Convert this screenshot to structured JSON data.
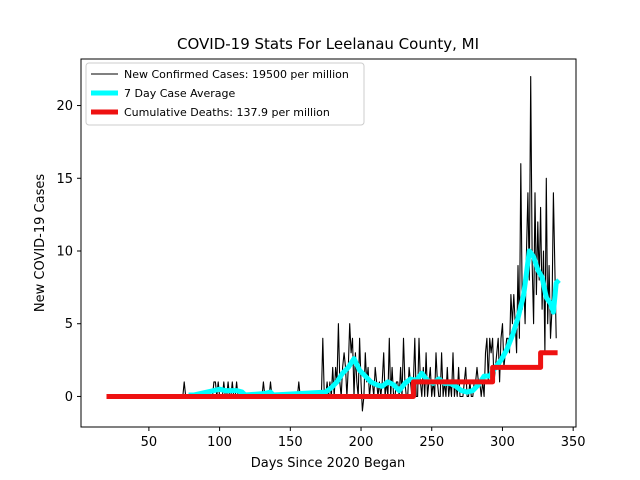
{
  "chart_data": {
    "type": "line",
    "title": "COVID-19 Stats For Leelanau County, MI",
    "xlabel": "Days Since 2020 Began",
    "ylabel": "New COVID-19 Cases",
    "xlim": [
      2,
      352
    ],
    "ylim": [
      -2.1,
      23.2
    ],
    "xticks": [
      50,
      100,
      150,
      200,
      250,
      300,
      350
    ],
    "yticks": [
      0,
      5,
      10,
      15,
      20
    ],
    "grid": false,
    "legend_position": "top-left",
    "series": [
      {
        "name": "New Confirmed Cases: 19500 per million",
        "color": "#000000",
        "points": [
          [
            20,
            0
          ],
          [
            74,
            0
          ],
          [
            75,
            1
          ],
          [
            76,
            0
          ],
          [
            95,
            0
          ],
          [
            96,
            1
          ],
          [
            97,
            1
          ],
          [
            98,
            0
          ],
          [
            99,
            1
          ],
          [
            100,
            0
          ],
          [
            101,
            0
          ],
          [
            102,
            0
          ],
          [
            103,
            1
          ],
          [
            104,
            0
          ],
          [
            105,
            0
          ],
          [
            106,
            1
          ],
          [
            107,
            0
          ],
          [
            108,
            0
          ],
          [
            109,
            1
          ],
          [
            110,
            0
          ],
          [
            111,
            0
          ],
          [
            112,
            1
          ],
          [
            113,
            0
          ],
          [
            114,
            0
          ],
          [
            130,
            0
          ],
          [
            131,
            1
          ],
          [
            132,
            0
          ],
          [
            135,
            0
          ],
          [
            136,
            1
          ],
          [
            137,
            0
          ],
          [
            155,
            0
          ],
          [
            156,
            1
          ],
          [
            157,
            0
          ],
          [
            165,
            0
          ],
          [
            166,
            0
          ],
          [
            172,
            0
          ],
          [
            173,
            4
          ],
          [
            174,
            0
          ],
          [
            175,
            0
          ],
          [
            176,
            1
          ],
          [
            177,
            0
          ],
          [
            178,
            1
          ],
          [
            179,
            0
          ],
          [
            180,
            2
          ],
          [
            181,
            0
          ],
          [
            182,
            2
          ],
          [
            183,
            1
          ],
          [
            184,
            5
          ],
          [
            185,
            1
          ],
          [
            186,
            0
          ],
          [
            187,
            2
          ],
          [
            188,
            3
          ],
          [
            189,
            2
          ],
          [
            190,
            0
          ],
          [
            191,
            2
          ],
          [
            192,
            5
          ],
          [
            193,
            3
          ],
          [
            194,
            4
          ],
          [
            195,
            0
          ],
          [
            196,
            3
          ],
          [
            197,
            1
          ],
          [
            198,
            0
          ],
          [
            199,
            4
          ],
          [
            200,
            1
          ],
          [
            201,
            -1
          ],
          [
            202,
            0
          ],
          [
            203,
            3
          ],
          [
            204,
            1
          ],
          [
            205,
            2
          ],
          [
            206,
            0
          ],
          [
            207,
            1
          ],
          [
            208,
            1
          ],
          [
            209,
            0
          ],
          [
            210,
            2
          ],
          [
            211,
            1
          ],
          [
            212,
            0
          ],
          [
            213,
            1
          ],
          [
            214,
            0
          ],
          [
            215,
            1
          ],
          [
            216,
            3
          ],
          [
            217,
            0
          ],
          [
            218,
            1
          ],
          [
            219,
            0
          ],
          [
            220,
            4
          ],
          [
            221,
            0
          ],
          [
            222,
            2
          ],
          [
            223,
            0
          ],
          [
            224,
            0
          ],
          [
            225,
            1
          ],
          [
            226,
            1
          ],
          [
            227,
            0
          ],
          [
            228,
            2
          ],
          [
            229,
            0
          ],
          [
            230,
            4
          ],
          [
            231,
            1
          ],
          [
            232,
            0
          ],
          [
            233,
            0
          ],
          [
            234,
            2
          ],
          [
            235,
            1
          ],
          [
            236,
            0
          ],
          [
            237,
            1
          ],
          [
            238,
            4
          ],
          [
            239,
            0
          ],
          [
            240,
            0
          ],
          [
            241,
            4
          ],
          [
            242,
            1
          ],
          [
            243,
            0
          ],
          [
            244,
            2
          ],
          [
            245,
            0
          ],
          [
            246,
            3
          ],
          [
            247,
            0
          ],
          [
            248,
            1
          ],
          [
            249,
            2
          ],
          [
            250,
            0
          ],
          [
            251,
            1
          ],
          [
            252,
            0
          ],
          [
            253,
            3
          ],
          [
            254,
            1
          ],
          [
            255,
            0
          ],
          [
            256,
            0
          ],
          [
            257,
            3
          ],
          [
            258,
            0
          ],
          [
            259,
            1
          ],
          [
            260,
            0
          ],
          [
            261,
            2
          ],
          [
            262,
            0
          ],
          [
            263,
            1
          ],
          [
            264,
            0
          ],
          [
            265,
            3
          ],
          [
            266,
            0
          ],
          [
            267,
            1
          ],
          [
            268,
            0
          ],
          [
            269,
            2
          ],
          [
            270,
            0
          ],
          [
            271,
            0
          ],
          [
            272,
            0
          ],
          [
            273,
            1
          ],
          [
            274,
            2
          ],
          [
            275,
            0
          ],
          [
            276,
            0
          ],
          [
            277,
            1
          ],
          [
            278,
            0
          ],
          [
            279,
            0
          ],
          [
            280,
            1
          ],
          [
            281,
            1
          ],
          [
            282,
            2
          ],
          [
            283,
            1
          ],
          [
            284,
            1
          ],
          [
            285,
            0
          ],
          [
            286,
            1
          ],
          [
            287,
            0
          ],
          [
            288,
            3
          ],
          [
            289,
            4
          ],
          [
            290,
            1
          ],
          [
            291,
            4
          ],
          [
            292,
            3
          ],
          [
            293,
            4
          ],
          [
            294,
            1
          ],
          [
            295,
            2
          ],
          [
            296,
            3
          ],
          [
            297,
            4
          ],
          [
            298,
            1
          ],
          [
            299,
            4
          ],
          [
            300,
            5
          ],
          [
            301,
            2
          ],
          [
            302,
            3
          ],
          [
            303,
            4
          ],
          [
            304,
            4
          ],
          [
            305,
            3
          ],
          [
            306,
            7
          ],
          [
            307,
            5
          ],
          [
            308,
            7
          ],
          [
            309,
            5
          ],
          [
            310,
            3
          ],
          [
            311,
            9
          ],
          [
            312,
            4
          ],
          [
            313,
            16
          ],
          [
            314,
            6
          ],
          [
            315,
            8
          ],
          [
            316,
            5
          ],
          [
            317,
            10
          ],
          [
            318,
            14
          ],
          [
            319,
            8
          ],
          [
            320,
            22
          ],
          [
            321,
            9
          ],
          [
            322,
            5
          ],
          [
            323,
            14
          ],
          [
            324,
            7
          ],
          [
            325,
            12
          ],
          [
            326,
            8
          ],
          [
            327,
            13
          ],
          [
            328,
            6
          ],
          [
            329,
            10
          ],
          [
            330,
            3
          ],
          [
            331,
            15
          ],
          [
            332,
            5
          ],
          [
            333,
            9
          ],
          [
            334,
            4
          ],
          [
            335,
            6
          ],
          [
            336,
            14
          ],
          [
            337,
            9
          ],
          [
            338,
            4
          ]
        ]
      },
      {
        "name": "7 Day Case Average",
        "color": "#00ffff",
        "points": [
          [
            78,
            0.1
          ],
          [
            82,
            0.1
          ],
          [
            96,
            0.4
          ],
          [
            100,
            0.5
          ],
          [
            104,
            0.4
          ],
          [
            108,
            0.4
          ],
          [
            112,
            0.4
          ],
          [
            116,
            0.3
          ],
          [
            118,
            0.1
          ],
          [
            132,
            0.2
          ],
          [
            136,
            0.3
          ],
          [
            138,
            0.1
          ],
          [
            175,
            0.3
          ],
          [
            179,
            0.6
          ],
          [
            183,
            1
          ],
          [
            187,
            1.6
          ],
          [
            191,
            2
          ],
          [
            195,
            2.6
          ],
          [
            199,
            1.8
          ],
          [
            203,
            1.4
          ],
          [
            207,
            1
          ],
          [
            211,
            0.8
          ],
          [
            215,
            0.7
          ],
          [
            219,
            1
          ],
          [
            223,
            0.8
          ],
          [
            227,
            0.4
          ],
          [
            231,
            0.9
          ],
          [
            235,
            1.2
          ],
          [
            239,
            1.1
          ],
          [
            243,
            1.6
          ],
          [
            247,
            1.1
          ],
          [
            251,
            0.9
          ],
          [
            255,
            1.2
          ],
          [
            259,
            0.9
          ],
          [
            263,
            0.9
          ],
          [
            267,
            0.7
          ],
          [
            271,
            0.4
          ],
          [
            275,
            0.3
          ],
          [
            279,
            0.4
          ],
          [
            283,
            0.8
          ],
          [
            287,
            1.4
          ],
          [
            291,
            1.4
          ],
          [
            295,
            2
          ],
          [
            299,
            2.5
          ],
          [
            303,
            3.2
          ],
          [
            307,
            4.2
          ],
          [
            311,
            5.4
          ],
          [
            315,
            7
          ],
          [
            319,
            10
          ],
          [
            322,
            9.6
          ],
          [
            325,
            8.7
          ],
          [
            328,
            8.2
          ],
          [
            331,
            6.8
          ],
          [
            334,
            6.4
          ],
          [
            336,
            5.8
          ],
          [
            338,
            7.8
          ],
          [
            340,
            8
          ]
        ]
      },
      {
        "name": "Cumulative Deaths: 137.9 per million",
        "color": "#ee1111",
        "points": [
          [
            20,
            0
          ],
          [
            237,
            0
          ],
          [
            237,
            1
          ],
          [
            293,
            1
          ],
          [
            293,
            2
          ],
          [
            327,
            2
          ],
          [
            327,
            3
          ],
          [
            339,
            3
          ]
        ]
      }
    ]
  }
}
